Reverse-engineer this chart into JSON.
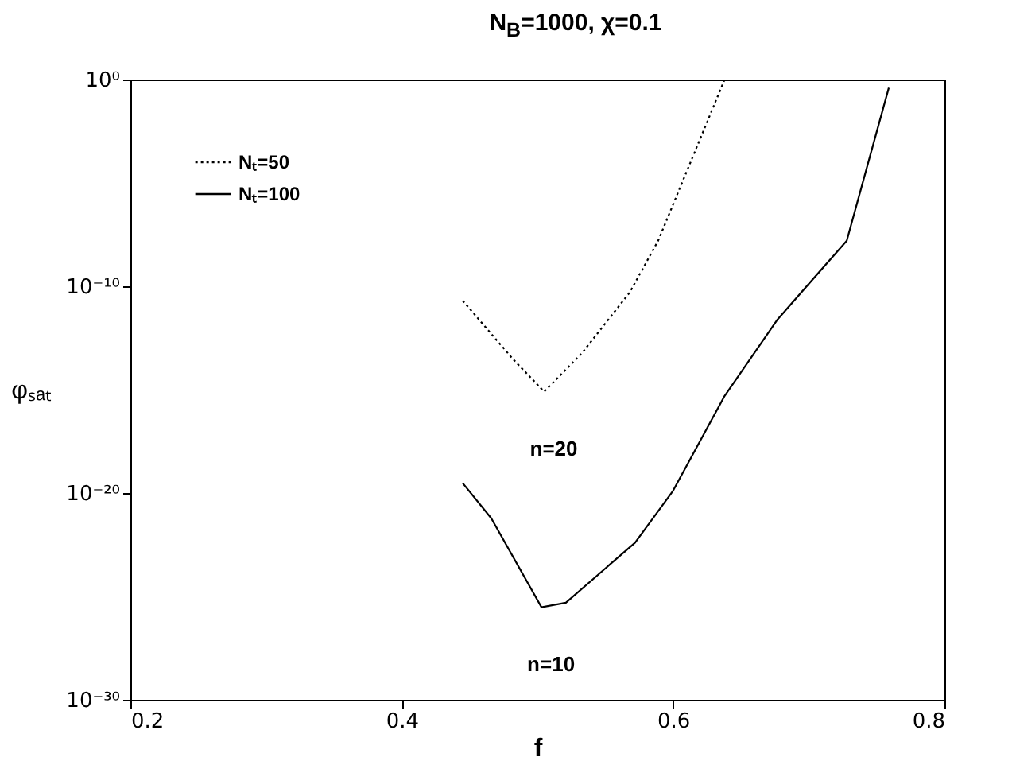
{
  "chart_data": {
    "type": "line",
    "title": "N$_{B}$=1000, χ=0.1",
    "xlabel": "f",
    "ylabel": "φₛₐₜ",
    "xlim": [
      0.2,
      0.8
    ],
    "xticks": [
      0.2,
      0.4,
      0.6,
      0.8
    ],
    "ylim": [
      1e-30,
      1
    ],
    "yticks": [
      {
        "value": 1e-30,
        "label": "10⁻³⁰"
      },
      {
        "value": 1e-20,
        "label": "10⁻²⁰"
      },
      {
        "value": 1e-10,
        "label": "10⁻¹⁰"
      },
      {
        "value": 1,
        "label": "10⁰"
      }
    ],
    "log": "y",
    "grid": false,
    "legend": "top left",
    "series": [
      {
        "name": "Nₜ=50",
        "color": "#000000",
        "line_style": "dotted",
        "x": [
          0.445,
          0.482,
          0.505,
          0.533,
          0.568,
          0.589,
          0.638
        ],
        "values": [
          2e-11,
          3e-14,
          8e-16,
          6e-14,
          5e-11,
          1.6e-08,
          1
        ]
      },
      {
        "name": "Nₜ=100",
        "color": "#000000",
        "line_style": "solid",
        "x": [
          0.445,
          0.466,
          0.503,
          0.521,
          0.572,
          0.6,
          0.638,
          0.677,
          0.728,
          0.759
        ],
        "values": [
          3e-20,
          6e-22,
          3e-26,
          5e-26,
          4e-23,
          1.3e-20,
          5e-16,
          2.5e-12,
          1.6e-08,
          0.4
        ]
      }
    ],
    "annotations": [
      "n=20",
      "n=10"
    ]
  }
}
